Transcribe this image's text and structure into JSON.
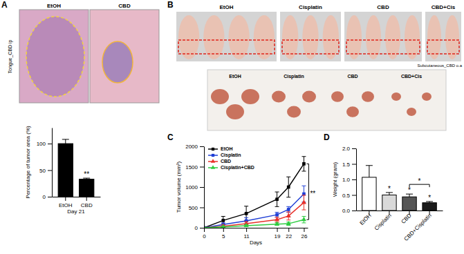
{
  "panels": {
    "A": {
      "letter": "A",
      "image_labels": [
        "EtOH",
        "CBD"
      ],
      "side_label": "Tongue_CBD ip"
    },
    "B": {
      "letter": "B",
      "image_labels": [
        "EtOH",
        "Cisplatin",
        "CBD",
        "CBD+Cis"
      ],
      "caption": "Subcutaneous_CBD o.a",
      "tumor_labels": [
        "EtOH",
        "Cisplatin",
        "CBD",
        "CBD+Cis"
      ]
    },
    "C": {
      "letter": "C"
    },
    "D": {
      "letter": "D"
    }
  },
  "chart_data": [
    {
      "type": "bar",
      "categories": [
        "EtOH",
        "CBD"
      ],
      "values": [
        100,
        33
      ],
      "errors": [
        8,
        2
      ],
      "color": "#000000",
      "y_label": "Percentage of tumor area (%)",
      "x_label": "Day 21",
      "ylim": [
        0,
        130
      ],
      "yticks": [
        0,
        50,
        100
      ],
      "annotations": [
        {
          "text": "**",
          "category": "CBD"
        }
      ]
    },
    {
      "type": "line",
      "x": [
        0,
        5,
        11,
        19,
        22,
        26
      ],
      "xlim": [
        0,
        27
      ],
      "xticks": [
        0,
        5,
        11,
        19,
        22,
        26
      ],
      "ylim": [
        0,
        2000
      ],
      "yticks": [
        0,
        500,
        1000,
        1500,
        2000
      ],
      "x_label": "Days",
      "y_label": "Tumor volume (mm³)",
      "legend": "upper left",
      "series": [
        {
          "name": "EtOH",
          "color": "#000000",
          "marker": "square",
          "values": [
            0,
            180,
            350,
            700,
            1000,
            1570
          ],
          "errors": [
            0,
            100,
            180,
            180,
            250,
            180
          ]
        },
        {
          "name": "Cisplatin",
          "color": "#1f3fd6",
          "marker": "square",
          "values": [
            0,
            80,
            170,
            320,
            450,
            830
          ],
          "errors": [
            0,
            40,
            80,
            60,
            70,
            200
          ]
        },
        {
          "name": "CBD",
          "color": "#e8312a",
          "marker": "triangle",
          "values": [
            0,
            40,
            100,
            200,
            290,
            620
          ],
          "errors": [
            0,
            30,
            50,
            60,
            100,
            180
          ]
        },
        {
          "name": "Cisplatin+CBD",
          "color": "#2ecc40",
          "marker": "triangle",
          "values": [
            0,
            20,
            50,
            90,
            100,
            200
          ],
          "errors": [
            0,
            10,
            20,
            30,
            40,
            80
          ]
        }
      ],
      "annotations": [
        {
          "text": "**",
          "between": [
            "EtOH",
            "Cisplatin+CBD"
          ]
        }
      ]
    },
    {
      "type": "bar",
      "categories": [
        "EtOH",
        "Cisplatin",
        "CBD",
        "CBD+Cisplatin"
      ],
      "values": [
        1.07,
        0.5,
        0.44,
        0.25
      ],
      "errors": [
        0.38,
        0.08,
        0.09,
        0.04
      ],
      "colors": [
        "#ffffff",
        "#d9d9d9",
        "#555555",
        "#1a1a1a"
      ],
      "y_label": "Weight (gram)",
      "ylim": [
        0,
        2.0
      ],
      "yticks": [
        {
          "value": 0,
          "label": "0.0"
        },
        0.5,
        {
          "value": 1,
          "label": "1.0"
        },
        1.5,
        {
          "value": 2,
          "label": "2.0"
        }
      ],
      "annotations": [
        {
          "text": "*",
          "category": "Cisplatin"
        },
        {
          "text": "*",
          "category": "CBD"
        },
        {
          "text": "*",
          "category": "CBD+Cisplatin"
        },
        {
          "text": "*",
          "between": [
            "CBD",
            "CBD+Cisplatin"
          ]
        }
      ]
    }
  ]
}
